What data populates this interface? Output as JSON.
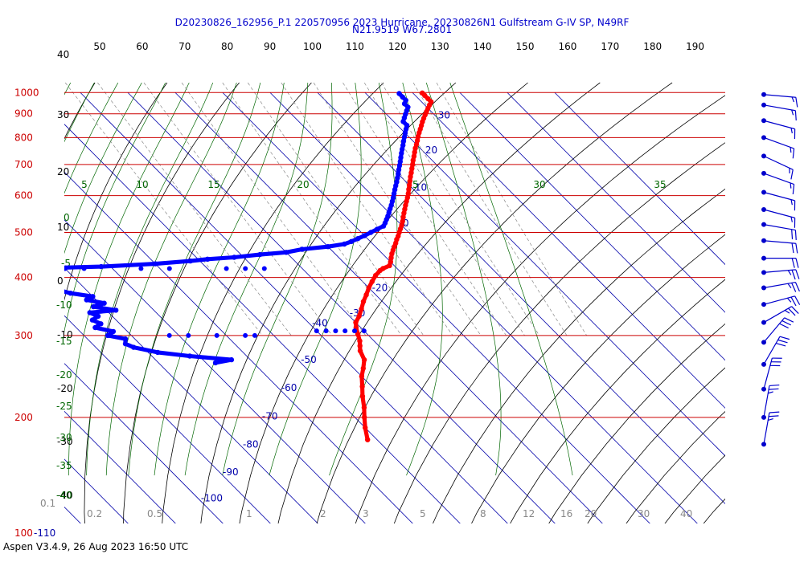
{
  "title_line1": "D20230826_162956_P.1 220570956 2023 Hurricane, 20230826N1 Gulfstream G-IV SP, N49RF",
  "title_line2": "N21.9519 W67.2801",
  "footer": "Aspen V3.4.9, 26 Aug 2023  16:50 UTC",
  "colors": {
    "pressure_lines": "#cc0000",
    "isotherms": "#0000aa",
    "dry_adiabats": "#000000",
    "moist_adiabats": "#006600",
    "mixing_ratio": "#888888",
    "temperature": "#ff0000",
    "dewpoint": "#0000ff",
    "wind_barbs": "#0000cc"
  },
  "chart_data": {
    "type": "skew-t log-p",
    "pressure_axis": {
      "unit": "hPa",
      "labels": [
        "100-110",
        "200",
        "300",
        "400",
        "500",
        "600",
        "700",
        "800",
        "900",
        "1000"
      ],
      "levels": [
        110,
        200,
        300,
        400,
        500,
        600,
        700,
        800,
        900,
        1000
      ]
    },
    "height_labels": [
      "40",
      "30",
      "20",
      "10",
      "0",
      "-10",
      "-20",
      "-30",
      "-40"
    ],
    "top_axis_labels": [
      "50",
      "60",
      "70",
      "80",
      "90",
      "100",
      "110",
      "120",
      "130",
      "140",
      "150",
      "160",
      "170",
      "180",
      "190"
    ],
    "isotherm_labels": [
      {
        "t": -100,
        "p": 132
      },
      {
        "t": -90,
        "p": 150
      },
      {
        "t": -80,
        "p": 172
      },
      {
        "t": -70,
        "p": 198
      },
      {
        "t": -60,
        "p": 228
      },
      {
        "t": -50,
        "p": 262
      },
      {
        "t": -40,
        "p": 314
      },
      {
        "t": -30,
        "p": 330
      },
      {
        "t": -20,
        "p": 374
      },
      {
        "t": 0,
        "p": 515
      },
      {
        "t": 10,
        "p": 615
      },
      {
        "t": 20,
        "p": 740
      },
      {
        "t": 30,
        "p": 880
      }
    ],
    "theta_e_top_labels": [
      "5",
      "10",
      "15",
      "20",
      "25",
      "30",
      "35"
    ],
    "theta_e_left_labels": [
      "0",
      "-5",
      "-10",
      "-15",
      "-20",
      "-25",
      "-30",
      "-35",
      "-40"
    ],
    "mixing_ratio_labels": [
      "0.1",
      "0.2",
      "0.5",
      "1",
      "2",
      "3",
      "5",
      "8",
      "12",
      "16",
      "20",
      "30",
      "40"
    ],
    "series": [
      {
        "key": "temperature",
        "points": [
          [
            -52,
            179
          ],
          [
            -50,
            190
          ],
          [
            -48,
            200
          ],
          [
            -46,
            210
          ],
          [
            -44,
            222
          ],
          [
            -42,
            233
          ],
          [
            -40,
            245
          ],
          [
            -38,
            255
          ],
          [
            -36,
            266
          ],
          [
            -35,
            278
          ],
          [
            -34,
            285
          ],
          [
            -33,
            292
          ],
          [
            -32,
            302
          ],
          [
            -31,
            312
          ],
          [
            -30,
            320
          ],
          [
            -28,
            330
          ],
          [
            -26,
            342
          ],
          [
            -24,
            355
          ],
          [
            -22,
            367
          ],
          [
            -20,
            380
          ],
          [
            -18,
            392
          ],
          [
            -16,
            404
          ],
          [
            -14,
            414
          ],
          [
            -13,
            418
          ],
          [
            -11,
            424
          ],
          [
            -10,
            432
          ],
          [
            -9,
            441
          ],
          [
            -8,
            450
          ],
          [
            -7,
            458
          ],
          [
            -6,
            466
          ],
          [
            -5,
            474
          ],
          [
            -4,
            483
          ],
          [
            -3,
            491
          ],
          [
            -2,
            500
          ],
          [
            -1,
            509
          ],
          [
            0,
            518
          ],
          [
            1,
            528
          ],
          [
            2,
            539
          ],
          [
            3,
            550
          ],
          [
            4,
            561
          ],
          [
            5,
            572
          ],
          [
            6,
            583
          ],
          [
            7,
            594
          ],
          [
            8,
            606
          ],
          [
            9,
            619
          ],
          [
            10,
            632
          ],
          [
            11,
            645
          ],
          [
            12,
            659
          ],
          [
            13,
            672
          ],
          [
            14,
            686
          ],
          [
            15,
            700
          ],
          [
            16,
            715
          ],
          [
            17,
            729
          ],
          [
            18,
            744
          ],
          [
            19,
            759
          ],
          [
            20,
            773
          ],
          [
            21,
            788
          ],
          [
            22,
            804
          ],
          [
            23,
            819
          ],
          [
            24,
            834
          ],
          [
            25,
            849
          ],
          [
            26,
            865
          ],
          [
            27,
            880
          ],
          [
            28,
            895
          ],
          [
            29,
            910
          ],
          [
            30,
            925
          ],
          [
            31,
            940
          ],
          [
            32,
            955
          ],
          [
            32,
            970
          ],
          [
            32,
            986
          ],
          [
            32,
            998
          ]
        ]
      },
      {
        "key": "dewpoint",
        "points": [
          [
            -68,
            262
          ],
          [
            -64,
            266
          ],
          [
            -72,
            271
          ],
          [
            -78,
            276
          ],
          [
            -82,
            283
          ],
          [
            -83,
            288
          ],
          [
            -82,
            295
          ],
          [
            -85,
            300
          ],
          [
            -83,
            306
          ],
          [
            -86,
            312
          ],
          [
            -84,
            318
          ],
          [
            -85,
            324
          ],
          [
            -83,
            330
          ],
          [
            -84,
            336
          ],
          [
            -78,
            340
          ],
          [
            -82,
            346
          ],
          [
            -79,
            352
          ],
          [
            -82,
            358
          ],
          [
            -80,
            364
          ],
          [
            -84,
            370
          ],
          [
            -86,
            376
          ],
          [
            -88,
            382
          ],
          [
            -86,
            388
          ],
          [
            -90,
            394
          ],
          [
            -88,
            400
          ],
          [
            -89,
            406
          ],
          [
            -87,
            412
          ],
          [
            -88,
            418
          ],
          [
            -72,
            422
          ],
          [
            -60,
            428
          ],
          [
            -52,
            434
          ],
          [
            -48,
            438
          ],
          [
            -42,
            442
          ],
          [
            -36,
            448
          ],
          [
            -30,
            453
          ],
          [
            -26,
            460
          ],
          [
            -20,
            466
          ],
          [
            -16,
            472
          ],
          [
            -14,
            478
          ],
          [
            -12,
            485
          ],
          [
            -10,
            492
          ],
          [
            -8,
            500
          ],
          [
            -6,
            508
          ],
          [
            -4,
            516
          ],
          [
            -3,
            524
          ],
          [
            -2,
            533
          ],
          [
            -1,
            542
          ],
          [
            0,
            552
          ],
          [
            1,
            562
          ],
          [
            2,
            572
          ],
          [
            3,
            583
          ],
          [
            4,
            594
          ],
          [
            5,
            606
          ],
          [
            6,
            618
          ],
          [
            7,
            630
          ],
          [
            8,
            642
          ],
          [
            9,
            655
          ],
          [
            10,
            668
          ],
          [
            11,
            682
          ],
          [
            12,
            696
          ],
          [
            13,
            710
          ],
          [
            14,
            725
          ],
          [
            15,
            740
          ],
          [
            16,
            755
          ],
          [
            17,
            770
          ],
          [
            18,
            786
          ],
          [
            19,
            802
          ],
          [
            20,
            818
          ],
          [
            21,
            834
          ],
          [
            22,
            850
          ],
          [
            22,
            866
          ],
          [
            23,
            882
          ],
          [
            24,
            898
          ],
          [
            25,
            914
          ],
          [
            26,
            930
          ],
          [
            26,
            946
          ],
          [
            27,
            962
          ],
          [
            27,
            978
          ],
          [
            27,
            995
          ]
        ]
      },
      {
        "key": "dewpoint_scatter",
        "points": [
          [
            -72,
            300
          ],
          [
            -68,
            300
          ],
          [
            -62,
            300
          ],
          [
            -56,
            300
          ],
          [
            -54,
            300
          ],
          [
            -40,
            307
          ],
          [
            -38,
            307
          ],
          [
            -36,
            307
          ],
          [
            -34,
            307
          ],
          [
            -32,
            307
          ],
          [
            -30,
            307
          ],
          [
            -86,
            418
          ],
          [
            -88,
            418
          ],
          [
            -92,
            418
          ],
          [
            -90,
            418
          ],
          [
            -80,
            418
          ],
          [
            -76,
            418
          ],
          [
            -64,
            418
          ],
          [
            -58,
            418
          ],
          [
            -46,
            418
          ],
          [
            -42,
            418
          ],
          [
            -38,
            418
          ]
        ]
      }
    ],
    "wind_barbs": [
      {
        "p": 175,
        "speed_kt": 25,
        "dir_deg": 350
      },
      {
        "p": 200,
        "speed_kt": 25,
        "dir_deg": 350
      },
      {
        "p": 230,
        "speed_kt": 30,
        "dir_deg": 345
      },
      {
        "p": 260,
        "speed_kt": 30,
        "dir_deg": 330
      },
      {
        "p": 290,
        "speed_kt": 30,
        "dir_deg": 320
      },
      {
        "p": 320,
        "speed_kt": 25,
        "dir_deg": 300
      },
      {
        "p": 350,
        "speed_kt": 25,
        "dir_deg": 285
      },
      {
        "p": 380,
        "speed_kt": 25,
        "dir_deg": 280
      },
      {
        "p": 410,
        "speed_kt": 25,
        "dir_deg": 275
      },
      {
        "p": 440,
        "speed_kt": 20,
        "dir_deg": 270
      },
      {
        "p": 480,
        "speed_kt": 20,
        "dir_deg": 265
      },
      {
        "p": 520,
        "speed_kt": 20,
        "dir_deg": 260
      },
      {
        "p": 560,
        "speed_kt": 15,
        "dir_deg": 255
      },
      {
        "p": 610,
        "speed_kt": 15,
        "dir_deg": 255
      },
      {
        "p": 670,
        "speed_kt": 15,
        "dir_deg": 250
      },
      {
        "p": 730,
        "speed_kt": 15,
        "dir_deg": 245
      },
      {
        "p": 800,
        "speed_kt": 15,
        "dir_deg": 250
      },
      {
        "p": 870,
        "speed_kt": 15,
        "dir_deg": 255
      },
      {
        "p": 940,
        "speed_kt": 15,
        "dir_deg": 260
      },
      {
        "p": 990,
        "speed_kt": 15,
        "dir_deg": 265
      }
    ]
  }
}
